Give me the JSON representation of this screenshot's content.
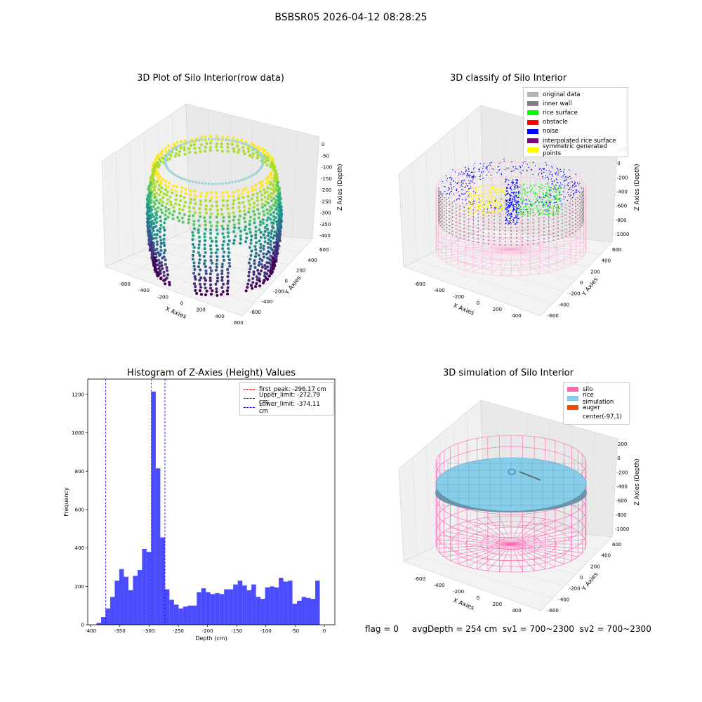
{
  "suptitle": "BSBSR05 2026-04-12 08:28:25",
  "status_line": "flag = 0     avgDepth = 254 cm  sv1 = 700~2300  sv2 = 700~2300",
  "panels": {
    "raw": {
      "title": "3D Plot of Silo Interior(row data)",
      "xlabel": "X Axies",
      "ylabel": "Y Axies",
      "zlabel": "Z Axies (Depth)",
      "xticks": [
        "-600",
        "-400",
        "-200",
        "0",
        "200",
        "400",
        "600"
      ],
      "yticks": [
        "-600",
        "-400",
        "-200",
        "0",
        "200",
        "400",
        "600"
      ],
      "zticks": [
        "0",
        "-50",
        "-100",
        "-150",
        "-200",
        "-250",
        "-300",
        "-350",
        "-400"
      ]
    },
    "classify": {
      "title": "3D classify of Silo Interior",
      "xlabel": "X Axies",
      "ylabel": "Y Axies",
      "zlabel": "Z Axies (Depth)",
      "xticks": [
        "-600",
        "-400",
        "-200",
        "0",
        "200",
        "400"
      ],
      "yticks": [
        "-600",
        "-400",
        "-200",
        "0",
        "200",
        "400",
        "600"
      ],
      "zticks": [
        "200",
        "0",
        "-200",
        "-400",
        "-600",
        "-800",
        "-1000"
      ],
      "legend": [
        {
          "label": "original data",
          "color": "#b3b3b3"
        },
        {
          "label": "inner wall",
          "color": "#808080"
        },
        {
          "label": "rice surface",
          "color": "#00ff00"
        },
        {
          "label": "obstacle",
          "color": "#ff0000"
        },
        {
          "label": "noise",
          "color": "#0000ff"
        },
        {
          "label": "interpolated rice surface",
          "color": "#800080"
        },
        {
          "label": "symmetric generated points",
          "color": "#ffff00"
        }
      ]
    },
    "simulation": {
      "title": "3D simulation of Silo Interior",
      "xlabel": "X Axies",
      "ylabel": "Y Axies",
      "zlabel": "Z Axies (Depth)",
      "xticks": [
        "-600",
        "-400",
        "-200",
        "0",
        "200",
        "400"
      ],
      "yticks": [
        "-600",
        "-400",
        "-200",
        "0",
        "200",
        "400",
        "600"
      ],
      "zticks": [
        "200",
        "0",
        "-200",
        "-400",
        "-600",
        "-800",
        "-1000"
      ],
      "legend": [
        {
          "label": "silo",
          "color": "#ff69b4"
        },
        {
          "label": "rice simulation",
          "color": "#87ceeb"
        },
        {
          "label": "auger",
          "color": "#ff4500"
        },
        {
          "label": "center(-97,1)",
          "color": ""
        }
      ]
    }
  },
  "chart_data": {
    "type": "bar",
    "title": "Histogram of Z-Axies (Height) Values",
    "xlabel": "Depth (cm)",
    "ylabel": "Frequency",
    "xlim": [
      -405,
      18
    ],
    "ylim": [
      0,
      1280
    ],
    "xticks": [
      -400,
      -350,
      -300,
      -250,
      -200,
      -150,
      -100,
      -50,
      0
    ],
    "yticks": [
      0,
      200,
      400,
      600,
      800,
      1000,
      1200
    ],
    "bin_start": -390,
    "bin_width": 7.8,
    "bar_color": "#0000ff",
    "values": [
      10,
      40,
      85,
      145,
      230,
      290,
      250,
      180,
      255,
      285,
      395,
      380,
      1215,
      815,
      455,
      185,
      130,
      105,
      85,
      95,
      100,
      100,
      170,
      190,
      170,
      160,
      165,
      160,
      185,
      185,
      210,
      230,
      205,
      180,
      210,
      145,
      135,
      195,
      200,
      195,
      245,
      225,
      230,
      110,
      125,
      145,
      140,
      135,
      230
    ],
    "vlines": [
      {
        "label": "first_peak: -296.17 cm",
        "x": -296.17,
        "color": "#ff0000"
      },
      {
        "label": "Upper_limit: -272.79 cm",
        "x": -272.79,
        "color": "#0000ff"
      },
      {
        "label": "Lower_limit: -374.11 cm",
        "x": -374.11,
        "color": "#0000ff"
      }
    ]
  }
}
